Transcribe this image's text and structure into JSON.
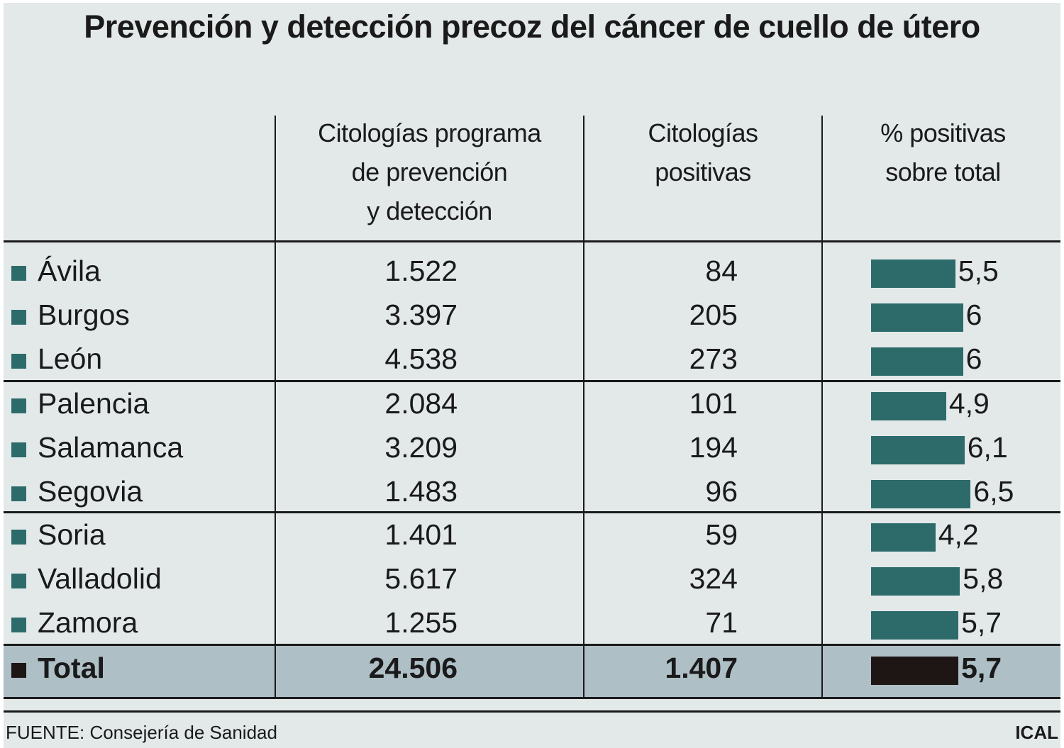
{
  "title": "Prevención y detección precoz del cáncer de cuello de útero",
  "headers": [
    "",
    "Citologías programa de prevención y detección",
    "Citologías positivas",
    "% positivas sobre total"
  ],
  "header_lines": {
    "col1": [
      "Citologías programa",
      "de prevención",
      "y detección"
    ],
    "col2": [
      "Citologías",
      "positivas"
    ],
    "col3": [
      "% positivas",
      "sobre total"
    ]
  },
  "colors": {
    "bar": "#2d6b6b",
    "total_bar": "#1e1615",
    "total_row_bg": "#aebfc6",
    "background": "#e3e9e9"
  },
  "chart_data": {
    "type": "table",
    "title": "Prevención y detección precoz del cáncer de cuello de útero",
    "columns": [
      "Citologías programa de prevención y detección",
      "Citologías positivas",
      "% positivas sobre total"
    ],
    "rows": [
      {
        "name": "Ávila",
        "citologias": "1.522",
        "positivas": "84",
        "pct": 5.5,
        "pct_label": "5,5"
      },
      {
        "name": "Burgos",
        "citologias": "3.397",
        "positivas": "205",
        "pct": 6,
        "pct_label": "6"
      },
      {
        "name": "León",
        "citologias": "4.538",
        "positivas": "273",
        "pct": 6,
        "pct_label": "6"
      },
      {
        "name": "Palencia",
        "citologias": "2.084",
        "positivas": "101",
        "pct": 4.9,
        "pct_label": "4,9"
      },
      {
        "name": "Salamanca",
        "citologias": "3.209",
        "positivas": "194",
        "pct": 6.1,
        "pct_label": "6,1"
      },
      {
        "name": "Segovia",
        "citologias": "1.483",
        "positivas": "96",
        "pct": 6.5,
        "pct_label": "6,5"
      },
      {
        "name": "Soria",
        "citologias": "1.401",
        "positivas": "59",
        "pct": 4.2,
        "pct_label": "4,2"
      },
      {
        "name": "Valladolid",
        "citologias": "5.617",
        "positivas": "324",
        "pct": 5.8,
        "pct_label": "5,8"
      },
      {
        "name": "Zamora",
        "citologias": "1.255",
        "positivas": "71",
        "pct": 5.7,
        "pct_label": "5,7"
      }
    ],
    "total": {
      "name": "Total",
      "citologias": "24.506",
      "positivas": "1.407",
      "pct": 5.7,
      "pct_label": "5,7"
    }
  },
  "footer": {
    "source": "FUENTE: Consejería de Sanidad",
    "credit": "ICAL"
  }
}
